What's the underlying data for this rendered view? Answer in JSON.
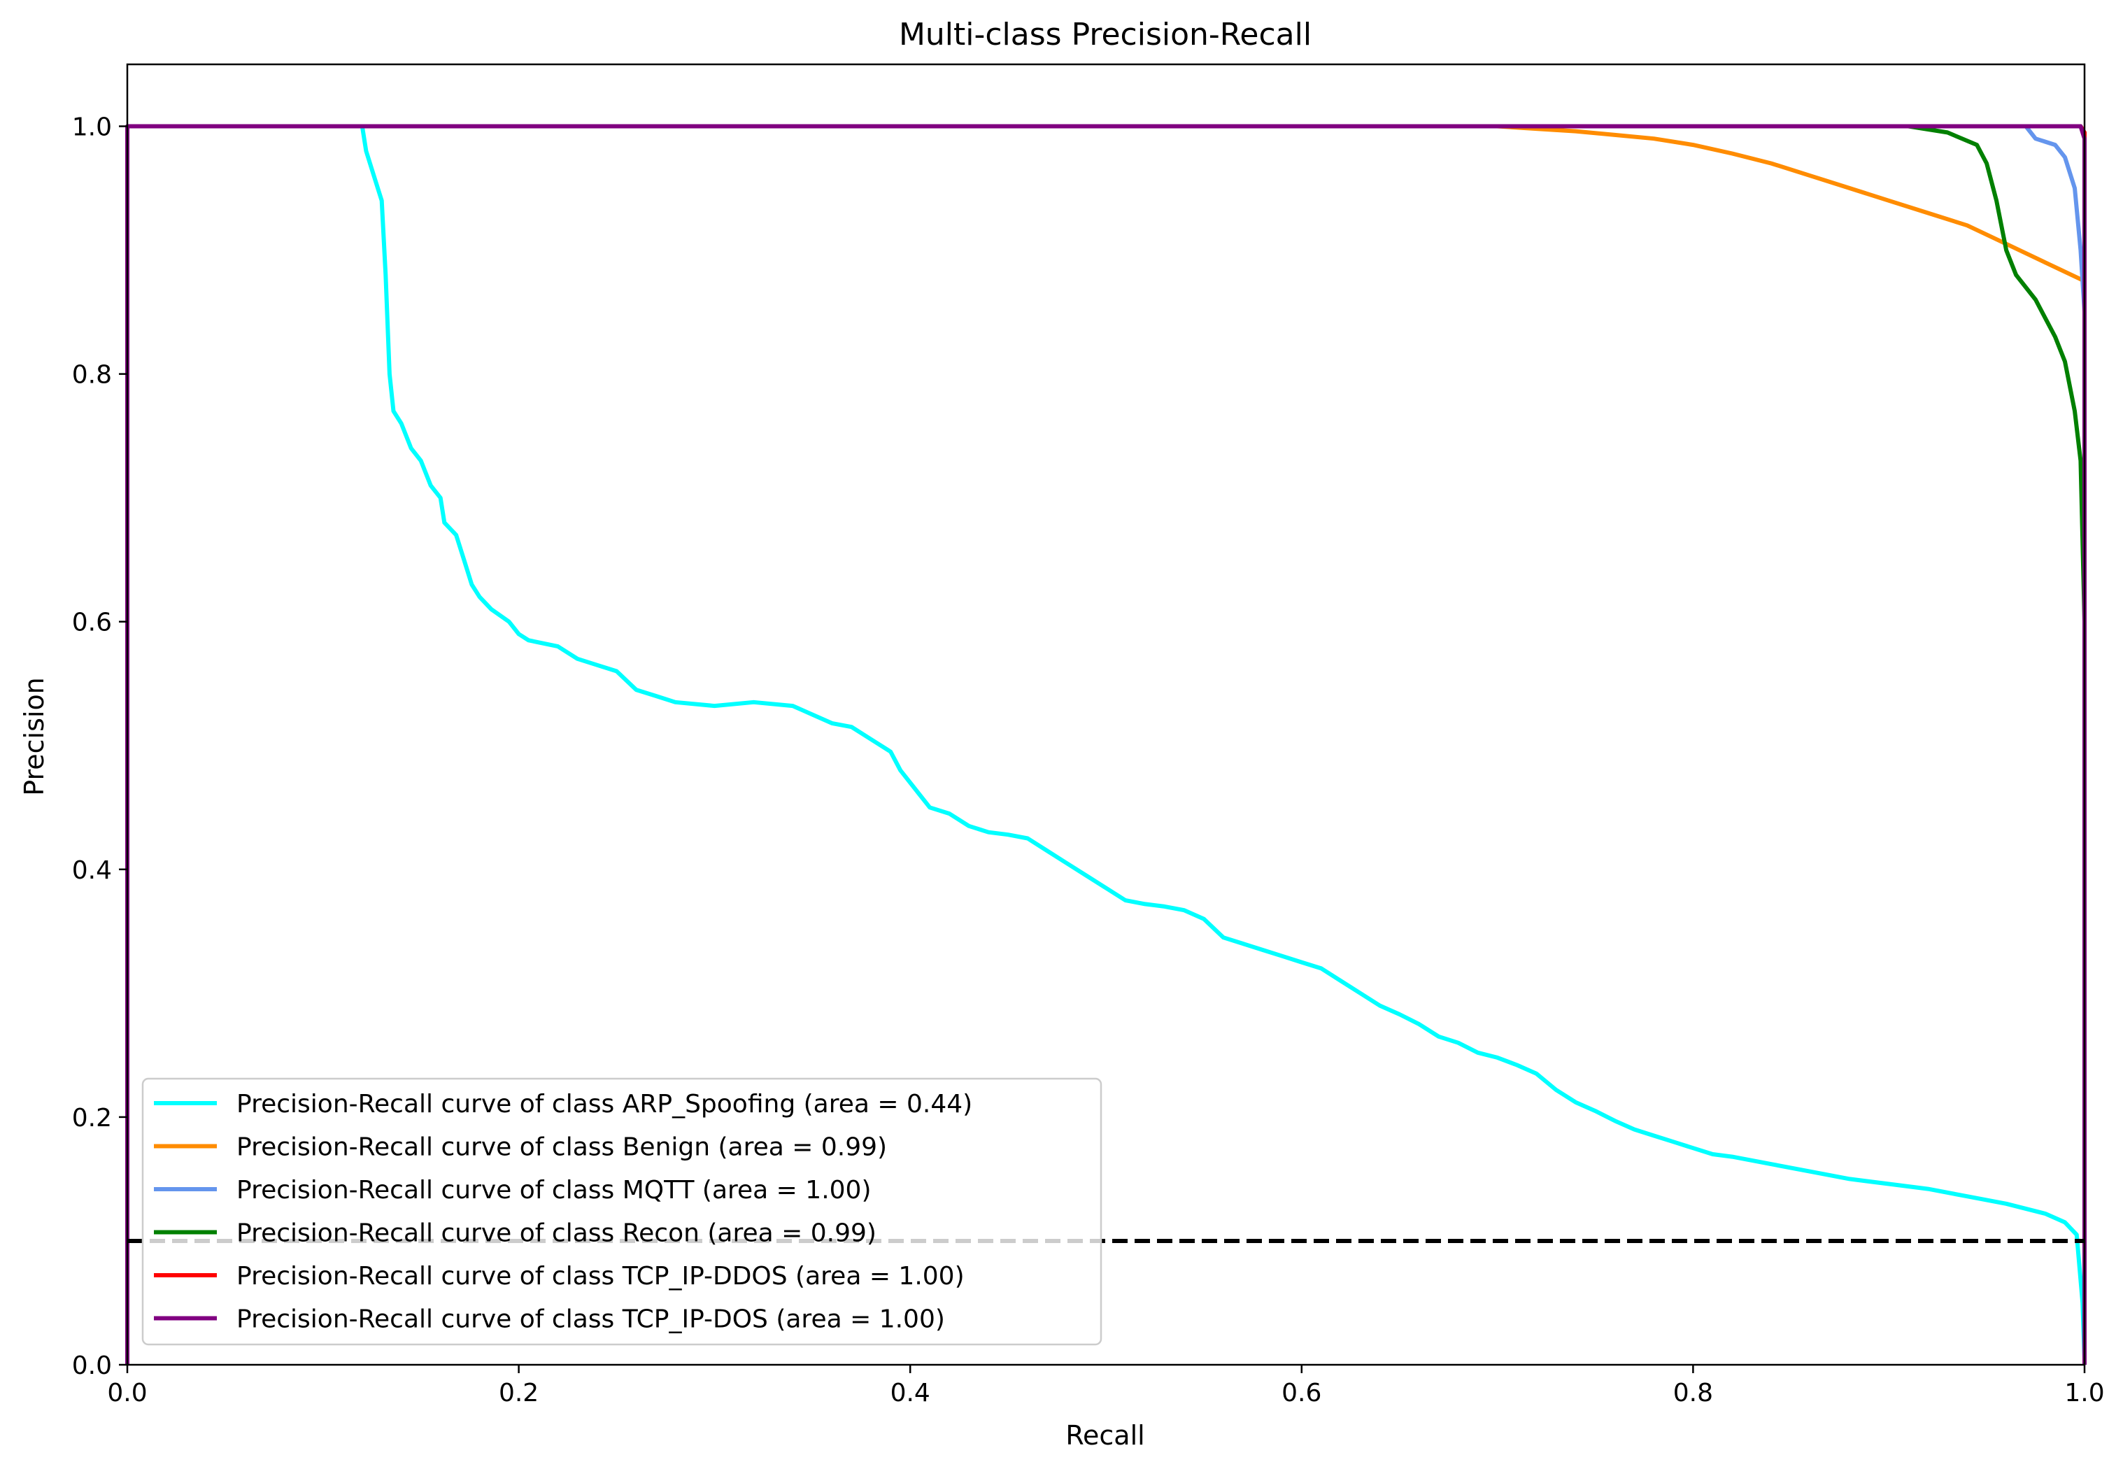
{
  "chart_data": {
    "type": "line",
    "title": "Multi-class Precision-Recall",
    "xlabel": "Recall",
    "ylabel": "Precision",
    "xlim": [
      0.0,
      1.0
    ],
    "ylim": [
      0.0,
      1.05
    ],
    "xticks": [
      0.0,
      0.2,
      0.4,
      0.6,
      0.8,
      1.0
    ],
    "xtick_labels": [
      "0.0",
      "0.2",
      "0.4",
      "0.6",
      "0.8",
      "1.0"
    ],
    "yticks": [
      0.0,
      0.2,
      0.4,
      0.6,
      0.8,
      1.0
    ],
    "ytick_labels": [
      "0.0",
      "0.2",
      "0.4",
      "0.6",
      "0.8",
      "1.0"
    ],
    "grid": false,
    "legend_position": "lower-left",
    "baseline": {
      "y": 0.1,
      "style": "dashed",
      "color": "#000000"
    },
    "series": [
      {
        "name": "Precision-Recall curve of class ARP_Spoofing (area = 0.44)",
        "color": "#00ffff",
        "points": [
          [
            0.0,
            1.0
          ],
          [
            0.12,
            1.0
          ],
          [
            0.122,
            0.98
          ],
          [
            0.126,
            0.96
          ],
          [
            0.13,
            0.94
          ],
          [
            0.132,
            0.88
          ],
          [
            0.134,
            0.8
          ],
          [
            0.136,
            0.77
          ],
          [
            0.14,
            0.76
          ],
          [
            0.145,
            0.74
          ],
          [
            0.15,
            0.73
          ],
          [
            0.155,
            0.71
          ],
          [
            0.16,
            0.7
          ],
          [
            0.162,
            0.68
          ],
          [
            0.168,
            0.67
          ],
          [
            0.172,
            0.65
          ],
          [
            0.176,
            0.63
          ],
          [
            0.18,
            0.62
          ],
          [
            0.186,
            0.61
          ],
          [
            0.195,
            0.6
          ],
          [
            0.2,
            0.59
          ],
          [
            0.205,
            0.585
          ],
          [
            0.22,
            0.58
          ],
          [
            0.23,
            0.57
          ],
          [
            0.24,
            0.565
          ],
          [
            0.25,
            0.56
          ],
          [
            0.26,
            0.545
          ],
          [
            0.27,
            0.54
          ],
          [
            0.28,
            0.535
          ],
          [
            0.3,
            0.532
          ],
          [
            0.32,
            0.535
          ],
          [
            0.34,
            0.532
          ],
          [
            0.35,
            0.525
          ],
          [
            0.36,
            0.518
          ],
          [
            0.37,
            0.515
          ],
          [
            0.38,
            0.505
          ],
          [
            0.39,
            0.495
          ],
          [
            0.395,
            0.48
          ],
          [
            0.4,
            0.47
          ],
          [
            0.405,
            0.46
          ],
          [
            0.41,
            0.45
          ],
          [
            0.42,
            0.445
          ],
          [
            0.43,
            0.435
          ],
          [
            0.44,
            0.43
          ],
          [
            0.45,
            0.428
          ],
          [
            0.46,
            0.425
          ],
          [
            0.47,
            0.415
          ],
          [
            0.48,
            0.405
          ],
          [
            0.49,
            0.395
          ],
          [
            0.5,
            0.385
          ],
          [
            0.51,
            0.375
          ],
          [
            0.52,
            0.372
          ],
          [
            0.53,
            0.37
          ],
          [
            0.54,
            0.367
          ],
          [
            0.55,
            0.36
          ],
          [
            0.56,
            0.345
          ],
          [
            0.57,
            0.34
          ],
          [
            0.58,
            0.335
          ],
          [
            0.59,
            0.33
          ],
          [
            0.6,
            0.325
          ],
          [
            0.61,
            0.32
          ],
          [
            0.62,
            0.31
          ],
          [
            0.63,
            0.3
          ],
          [
            0.64,
            0.29
          ],
          [
            0.65,
            0.283
          ],
          [
            0.66,
            0.275
          ],
          [
            0.67,
            0.265
          ],
          [
            0.68,
            0.26
          ],
          [
            0.69,
            0.252
          ],
          [
            0.7,
            0.248
          ],
          [
            0.71,
            0.242
          ],
          [
            0.72,
            0.235
          ],
          [
            0.73,
            0.222
          ],
          [
            0.74,
            0.212
          ],
          [
            0.75,
            0.205
          ],
          [
            0.76,
            0.197
          ],
          [
            0.77,
            0.19
          ],
          [
            0.78,
            0.185
          ],
          [
            0.79,
            0.18
          ],
          [
            0.8,
            0.175
          ],
          [
            0.81,
            0.17
          ],
          [
            0.82,
            0.168
          ],
          [
            0.84,
            0.162
          ],
          [
            0.86,
            0.156
          ],
          [
            0.88,
            0.15
          ],
          [
            0.9,
            0.146
          ],
          [
            0.92,
            0.142
          ],
          [
            0.94,
            0.136
          ],
          [
            0.96,
            0.13
          ],
          [
            0.98,
            0.122
          ],
          [
            0.99,
            0.115
          ],
          [
            0.996,
            0.105
          ],
          [
            0.999,
            0.05
          ],
          [
            1.0,
            0.005
          ]
        ]
      },
      {
        "name": "Precision-Recall curve of class Benign (area = 0.99)",
        "color": "#ff8c00",
        "points": [
          [
            0.0,
            1.0
          ],
          [
            0.7,
            1.0
          ],
          [
            0.72,
            0.998
          ],
          [
            0.74,
            0.996
          ],
          [
            0.76,
            0.993
          ],
          [
            0.78,
            0.99
          ],
          [
            0.8,
            0.985
          ],
          [
            0.82,
            0.978
          ],
          [
            0.84,
            0.97
          ],
          [
            0.86,
            0.96
          ],
          [
            0.88,
            0.95
          ],
          [
            0.9,
            0.94
          ],
          [
            0.92,
            0.93
          ],
          [
            0.94,
            0.92
          ],
          [
            0.96,
            0.905
          ],
          [
            0.98,
            0.89
          ],
          [
            1.0,
            0.875
          ]
        ]
      },
      {
        "name": "Precision-Recall curve of class MQTT (area = 1.00)",
        "color": "#6495ed",
        "points": [
          [
            0.0,
            1.0
          ],
          [
            0.97,
            1.0
          ],
          [
            0.975,
            0.99
          ],
          [
            0.985,
            0.985
          ],
          [
            0.99,
            0.975
          ],
          [
            0.995,
            0.95
          ],
          [
            0.998,
            0.9
          ],
          [
            1.0,
            0.85
          ],
          [
            1.0,
            0.0
          ]
        ]
      },
      {
        "name": "Precision-Recall curve of class Recon (area = 0.99)",
        "color": "#008000",
        "points": [
          [
            0.0,
            1.0
          ],
          [
            0.91,
            1.0
          ],
          [
            0.93,
            0.995
          ],
          [
            0.945,
            0.985
          ],
          [
            0.95,
            0.97
          ],
          [
            0.955,
            0.94
          ],
          [
            0.96,
            0.9
          ],
          [
            0.965,
            0.88
          ],
          [
            0.975,
            0.86
          ],
          [
            0.985,
            0.83
          ],
          [
            0.99,
            0.81
          ],
          [
            0.995,
            0.77
          ],
          [
            0.998,
            0.73
          ],
          [
            1.0,
            0.6
          ],
          [
            1.0,
            0.0
          ]
        ]
      },
      {
        "name": "Precision-Recall curve of class TCP_IP-DDOS (area = 1.00)",
        "color": "#ff0000",
        "points": [
          [
            0.0,
            1.0
          ],
          [
            0.998,
            1.0
          ],
          [
            1.0,
            0.995
          ],
          [
            1.0,
            0.0
          ]
        ]
      },
      {
        "name": "Precision-Recall curve of class TCP_IP-DOS (area = 1.00)",
        "color": "#800080",
        "points": [
          [
            0.0,
            0.0
          ],
          [
            0.0,
            1.0
          ],
          [
            0.998,
            1.0
          ],
          [
            1.0,
            0.99
          ],
          [
            1.0,
            0.0
          ]
        ]
      }
    ]
  }
}
